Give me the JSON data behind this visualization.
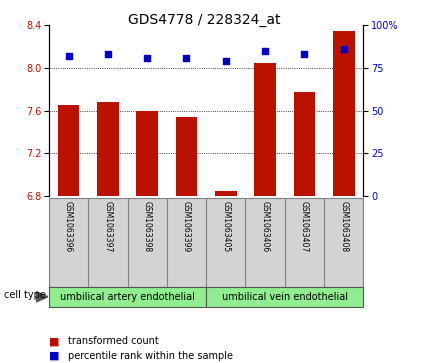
{
  "title": "GDS4778 / 228324_at",
  "samples": [
    "GSM1063396",
    "GSM1063397",
    "GSM1063398",
    "GSM1063399",
    "GSM1063405",
    "GSM1063406",
    "GSM1063407",
    "GSM1063408"
  ],
  "transformed_count": [
    7.65,
    7.68,
    7.6,
    7.54,
    6.85,
    8.05,
    7.78,
    8.35
  ],
  "percentile_rank": [
    82,
    83,
    81,
    81,
    79,
    85,
    83,
    86
  ],
  "ylim_left": [
    6.8,
    8.4
  ],
  "ylim_right": [
    0,
    100
  ],
  "yticks_left": [
    6.8,
    7.2,
    7.6,
    8.0,
    8.4
  ],
  "yticks_right": [
    0,
    25,
    50,
    75,
    100
  ],
  "gridlines": [
    7.2,
    7.6,
    8.0
  ],
  "bar_color": "#bb1100",
  "dot_color": "#0000cc",
  "group1_label": "umbilical artery endothelial",
  "group2_label": "umbilical vein endothelial",
  "group_color": "#90ee90",
  "cell_type_label": "cell type",
  "legend_items": [
    {
      "label": "transformed count",
      "color": "#bb1100"
    },
    {
      "label": "percentile rank within the sample",
      "color": "#0000cc"
    }
  ],
  "title_fontsize": 10,
  "tick_fontsize": 7,
  "sample_fontsize": 5.5,
  "cell_fontsize": 7,
  "legend_fontsize": 7
}
